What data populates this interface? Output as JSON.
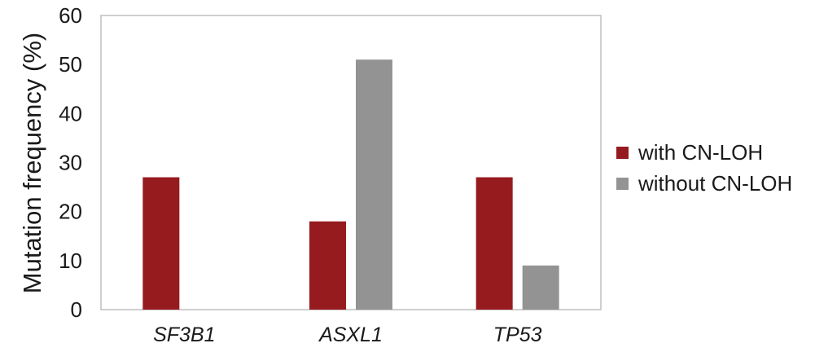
{
  "chart_data": {
    "type": "bar",
    "categories": [
      "SF3B1",
      "ASXL1",
      "TP53"
    ],
    "series": [
      {
        "name": "with CN-LOH",
        "values": [
          27,
          18,
          27
        ],
        "color": "#961b1f"
      },
      {
        "name": "without CN-LOH",
        "values": [
          0,
          51,
          9
        ],
        "color": "#939393"
      }
    ],
    "title": "",
    "xlabel": "",
    "ylabel": "Mutation frequency (%)",
    "ylim": [
      0,
      60
    ],
    "yticks": [
      0,
      10,
      20,
      30,
      40,
      50,
      60
    ],
    "grid": false,
    "legend_position": "right"
  },
  "colors": {
    "frame": "#bfbfbf",
    "text": "#1a1a1a"
  }
}
